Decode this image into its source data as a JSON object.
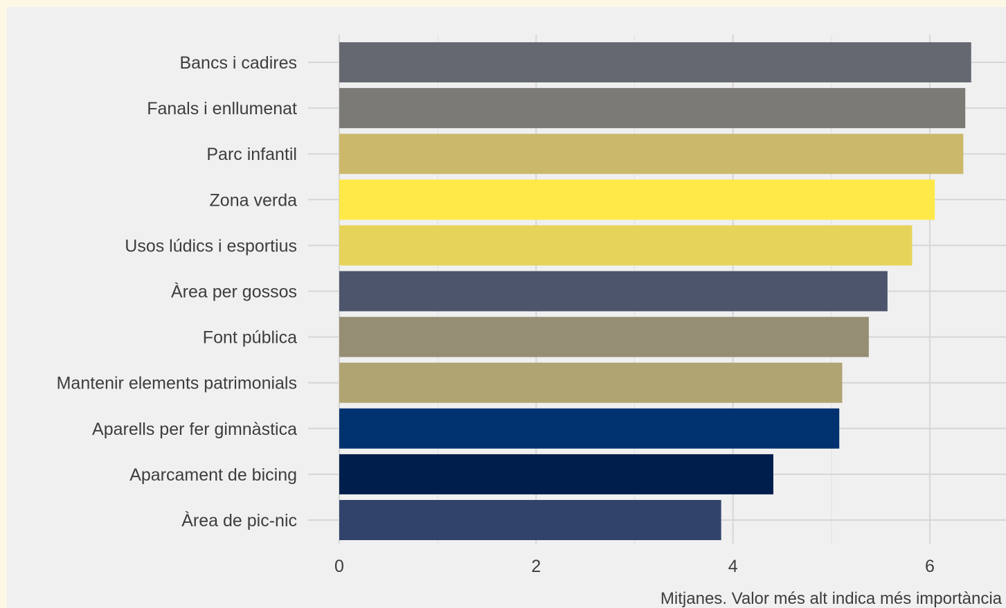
{
  "chart_data": {
    "type": "bar",
    "orientation": "horizontal",
    "categories": [
      "Bancs i cadires",
      "Fanals i enllumenat",
      "Parc infantil",
      "Zona verda",
      "Usos lúdics i esportius",
      "Àrea per gossos",
      "Font pública",
      "Mantenir elements patrimonials",
      "Aparells per fer gimnàstica",
      "Aparcament de bicing",
      "Àrea de pic-nic"
    ],
    "values": [
      6.42,
      6.36,
      6.34,
      6.05,
      5.82,
      5.57,
      5.38,
      5.11,
      5.08,
      4.41,
      3.88
    ],
    "colors": [
      "#666871",
      "#7c7a75",
      "#cbb86a",
      "#ffe948",
      "#e6d45a",
      "#4d556c",
      "#968d75",
      "#b1a473",
      "#003270",
      "#001e4b",
      "#31436b"
    ],
    "title": "",
    "xlabel": "Mitjanes. Valor més alt indica més importància",
    "ylabel": "",
    "xlim": [
      0,
      6.7
    ],
    "xticks": [
      0,
      2,
      4,
      6
    ],
    "grid": true,
    "legend": "none"
  }
}
